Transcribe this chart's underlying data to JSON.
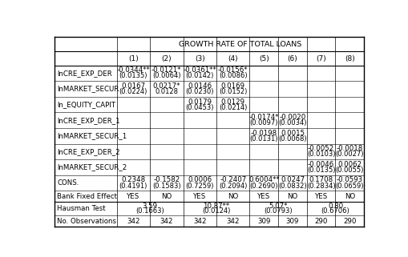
{
  "title": "GROWTH RATE OF TOTAL LOANS",
  "columns": [
    "",
    "(1)",
    "(2)",
    "(3)",
    "(4)",
    "(5)",
    "(6)",
    "(7)",
    "(8)"
  ],
  "rows": [
    {
      "label": "lnCRE_EXP_DER",
      "values": [
        "-0.0344**",
        "-0.0121*",
        "-0.0361**",
        "-0.0156*",
        "",
        "",
        "",
        ""
      ],
      "se": [
        "(0.0135)",
        "(0.0064)",
        "(0.0142)",
        "(0.0086)",
        "",
        "",
        "",
        ""
      ],
      "type": "double"
    },
    {
      "label": "lnMARKET_SECUR",
      "values": [
        "0.0167",
        "0.0217*",
        "0.0146",
        "0.0169",
        "",
        "",
        "",
        ""
      ],
      "se": [
        "(0.0224)",
        "0.0128",
        "(0.0230)",
        "(0.0152)",
        "",
        "",
        "",
        ""
      ],
      "type": "double"
    },
    {
      "label": "ln_EQUITY_CAPIT",
      "values": [
        "",
        "",
        "0.0179",
        "0.0129",
        "",
        "",
        "",
        ""
      ],
      "se": [
        "",
        "",
        "(0.0453)",
        "(0.0214)",
        "",
        "",
        "",
        ""
      ],
      "type": "double"
    },
    {
      "label": "lnCRE_EXP_DER_1",
      "values": [
        "",
        "",
        "",
        "",
        "-0.0174*",
        "-0.0020",
        "",
        ""
      ],
      "se": [
        "",
        "",
        "",
        "",
        "(0.0097)",
        "(0.0034)",
        "",
        ""
      ],
      "type": "double"
    },
    {
      "label": "lnMARKET_SECUR_1",
      "values": [
        "",
        "",
        "",
        "",
        "-0.0198",
        "0.0015",
        "",
        ""
      ],
      "se": [
        "",
        "",
        "",
        "",
        "(0.0131)",
        "(0.0068)",
        "",
        ""
      ],
      "type": "double"
    },
    {
      "label": "lnCRE_EXP_DER_2",
      "values": [
        "",
        "",
        "",
        "",
        "",
        "",
        "-0.0052",
        "-0.0018"
      ],
      "se": [
        "",
        "",
        "",
        "",
        "",
        "",
        "(0.0103)",
        "(0.0027)"
      ],
      "type": "double"
    },
    {
      "label": "lnMARKET_SECUR_2",
      "values": [
        "",
        "",
        "",
        "",
        "",
        "",
        "-0.0046",
        "0.0062"
      ],
      "se": [
        "",
        "",
        "",
        "",
        "",
        "",
        "(0.0135)",
        "(0.0055)"
      ],
      "type": "double"
    },
    {
      "label": "CONS.",
      "values": [
        "0.2348",
        "-0.1582",
        "0.0006",
        "-0.2407",
        "0.6004**",
        "0.0247",
        "0.1708",
        "-0.0593"
      ],
      "se": [
        "(0.4191)",
        "(0.1583)",
        "(0.7259)",
        "(0.2094)",
        "(0.2690)",
        "(0.0832)",
        "(0.2834)",
        "(0.0659)"
      ],
      "type": "double"
    },
    {
      "label": "Bank Fixed Effect",
      "values": [
        "YES",
        "NO",
        "YES",
        "NO",
        "YES",
        "NO",
        "YES",
        "NO"
      ],
      "se": [
        "",
        "",
        "",
        "",
        "",
        "",
        "",
        ""
      ],
      "type": "single"
    },
    {
      "label": "Hausman Test",
      "values": [
        "3.59",
        "",
        "10.87**",
        "",
        "5.07*",
        "",
        "0.80",
        ""
      ],
      "se": [
        "(0.1663)",
        "",
        "(0.0124)",
        "",
        "(0.0793)",
        "",
        "(0.6706)",
        ""
      ],
      "type": "hausman"
    },
    {
      "label": "No. Observations",
      "values": [
        "342",
        "342",
        "342",
        "342",
        "309",
        "309",
        "290",
        "290"
      ],
      "se": [
        "",
        "",
        "",
        "",
        "",
        "",
        "",
        ""
      ],
      "type": "single"
    }
  ],
  "bg_color": "#ffffff",
  "text_color": "#000000",
  "font_size": 6.5
}
